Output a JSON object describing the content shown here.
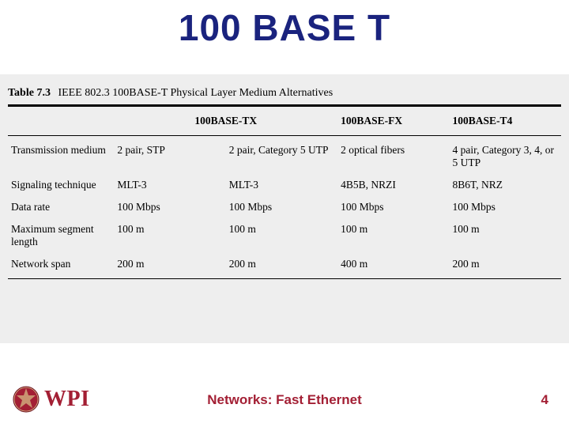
{
  "colors": {
    "title": "#1a237e",
    "accent": "#a31f34",
    "table_bg": "#eeeeee",
    "rule": "#000000",
    "page_bg": "#ffffff",
    "text": "#000000"
  },
  "typography": {
    "title_fontsize_pt": 34,
    "table_fontsize_pt": 10,
    "footer_fontsize_pt": 13,
    "title_font": "Comic Sans MS",
    "body_font": "Times New Roman"
  },
  "title": "100 BASE T",
  "table": {
    "type": "table",
    "label": "Table 7.3",
    "caption": "IEEE 802.3 100BASE-T Physical Layer Medium Alternatives",
    "column_widths_pct": [
      19,
      20,
      20,
      20,
      21
    ],
    "columns": [
      "",
      "100BASE-TX",
      "100BASE-TX",
      "100BASE-FX",
      "100BASE-T4"
    ],
    "header_span": {
      "start_col": 1,
      "span": 2,
      "text": "100BASE-TX"
    },
    "rows": [
      {
        "label": "Transmission medium",
        "cells": [
          "2 pair, STP",
          "2 pair, Category 5 UTP",
          "2 optical fibers",
          "4 pair, Category 3, 4, or 5 UTP"
        ]
      },
      {
        "label": "Signaling technique",
        "cells": [
          "MLT-3",
          "MLT-3",
          "4B5B, NRZI",
          "8B6T, NRZ"
        ]
      },
      {
        "label": "Data rate",
        "cells": [
          "100 Mbps",
          "100 Mbps",
          "100 Mbps",
          "100 Mbps"
        ]
      },
      {
        "label": "Maximum segment length",
        "cells": [
          "100 m",
          "100 m",
          "100 m",
          "100 m"
        ]
      },
      {
        "label": "Network span",
        "cells": [
          "200 m",
          "200 m",
          "400 m",
          "200 m"
        ]
      }
    ]
  },
  "footer": {
    "logo_text": "WPI",
    "text": "Networks: Fast Ethernet",
    "page": "4"
  }
}
